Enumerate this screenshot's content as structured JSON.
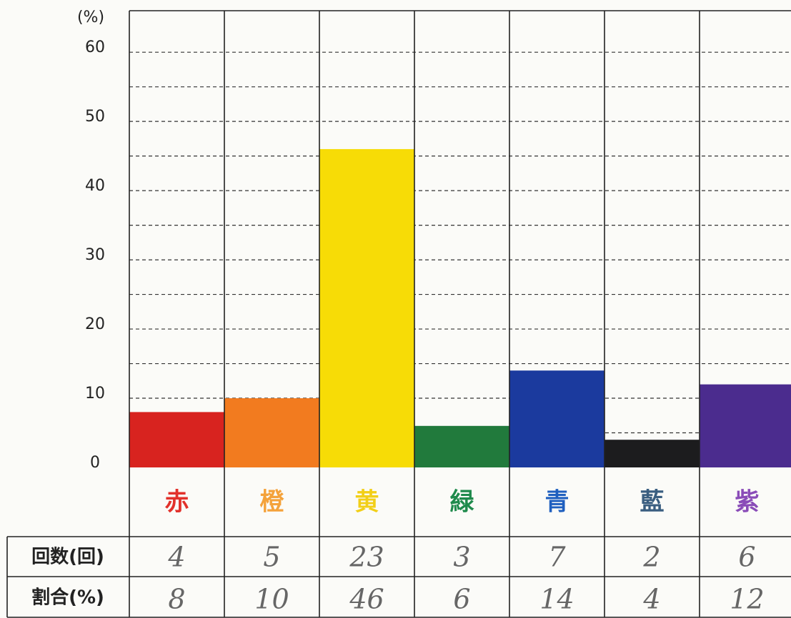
{
  "chart_data": {
    "type": "bar",
    "y_label": "(%)",
    "categories": [
      "赤",
      "橙",
      "黄",
      "緑",
      "青",
      "藍",
      "紫"
    ],
    "label_colors": [
      "#e2312b",
      "#f4a23a",
      "#f2cf17",
      "#1f8a4c",
      "#1f5fbf",
      "#3a5e80",
      "#8a4cb8"
    ],
    "values": [
      8,
      10,
      46,
      6,
      14,
      4,
      12
    ],
    "colors": [
      "#d8231f",
      "#f27b1f",
      "#f7dc06",
      "#217a3c",
      "#1b3a9e",
      "#1c1c1e",
      "#4b2c8e"
    ],
    "ylim": [
      0,
      66
    ],
    "yticks": [
      0,
      10,
      20,
      30,
      40,
      50,
      60
    ],
    "ygrid": [
      5,
      10,
      15,
      20,
      25,
      30,
      35,
      40,
      45,
      50,
      55,
      60
    ],
    "table": {
      "row_labels": [
        "回数(回)",
        "割合(%)"
      ],
      "counts": [
        4,
        5,
        23,
        3,
        7,
        2,
        6
      ]
    }
  }
}
